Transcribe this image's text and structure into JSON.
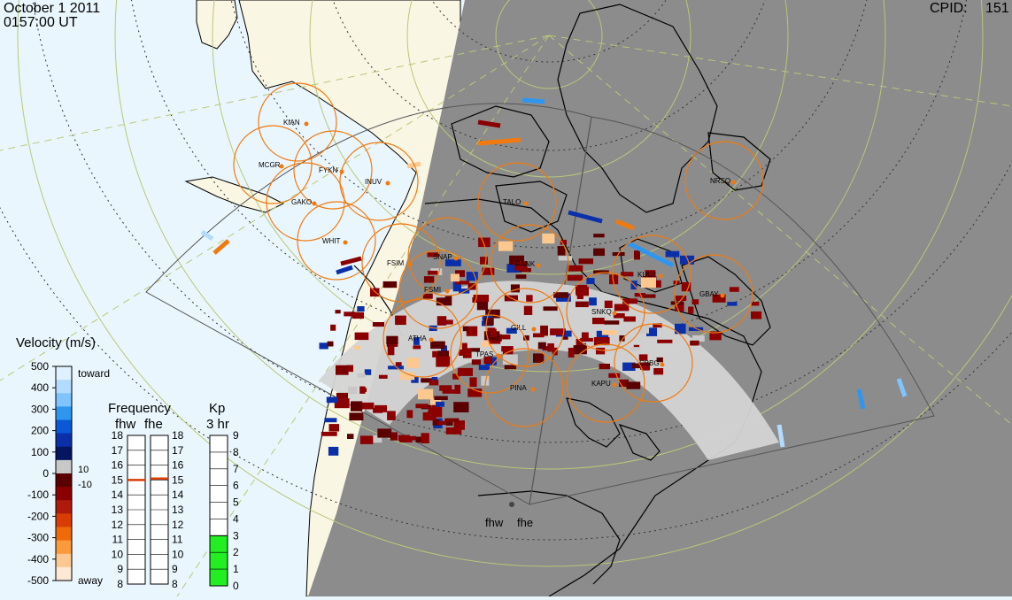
{
  "header": {
    "date": "October  1 2011",
    "time": "0157:00 UT",
    "cpid_label": "CPID:",
    "cpid_value": "151"
  },
  "velocity_scale": {
    "title": "Velocity (m/s)",
    "ticks": [
      "500",
      "400",
      "300",
      "200",
      "100",
      "0",
      "-100",
      "-200",
      "-300",
      "-400",
      "-500"
    ],
    "toward_label": "toward",
    "away_label": "away",
    "threshold_pos": "10",
    "threshold_neg": "-10",
    "colors": [
      "#dff0ff",
      "#b2dbff",
      "#7fc3ff",
      "#2f96f0",
      "#0a58d6",
      "#0b2fa8",
      "#051560",
      "#c8c8c8",
      "#5a0000",
      "#8b0000",
      "#b01a0a",
      "#d93d05",
      "#f06a0a",
      "#fa9a3a",
      "#fcc890",
      "#fde8d6"
    ]
  },
  "frequency_panel": {
    "title": "Frequency",
    "col_labels": [
      "fhw",
      "fhe"
    ],
    "ticks": [
      "18",
      "17",
      "16",
      "15",
      "14",
      "13",
      "12",
      "11",
      "10",
      "9",
      "8"
    ],
    "fhw_value": 15,
    "fhe_value": 15.1
  },
  "kp_panel": {
    "title": "Kp",
    "subtitle": "3 hr",
    "ticks": [
      "9",
      "8",
      "7",
      "6",
      "5",
      "4",
      "3",
      "2",
      "1",
      "0"
    ],
    "value": 3,
    "fill_color": "#22ee22"
  },
  "radar_labels": [
    {
      "code": "fhw"
    },
    {
      "code": "fhe"
    }
  ],
  "stations": [
    {
      "code": "KIAN"
    },
    {
      "code": "MCGR"
    },
    {
      "code": "FYKN"
    },
    {
      "code": "INUV"
    },
    {
      "code": "GAKO"
    },
    {
      "code": "WHIT"
    },
    {
      "code": "TALO"
    },
    {
      "code": "NRSQ"
    },
    {
      "code": "FSIM"
    },
    {
      "code": "SNAP"
    },
    {
      "code": "RANK"
    },
    {
      "code": "FSMI"
    },
    {
      "code": "KUUJ"
    },
    {
      "code": "GBAY"
    },
    {
      "code": "SNKQ"
    },
    {
      "code": "ATHA"
    },
    {
      "code": "GILL"
    },
    {
      "code": "TPAS"
    },
    {
      "code": "CBBG"
    },
    {
      "code": "KAPU"
    },
    {
      "code": "PINA"
    }
  ],
  "colors": {
    "night": "#8c8c8c",
    "day_ocean": "#eaf6fd",
    "day_land": "#faf6e4",
    "station_ring": "#f07a10",
    "grid": "#b8c878"
  }
}
